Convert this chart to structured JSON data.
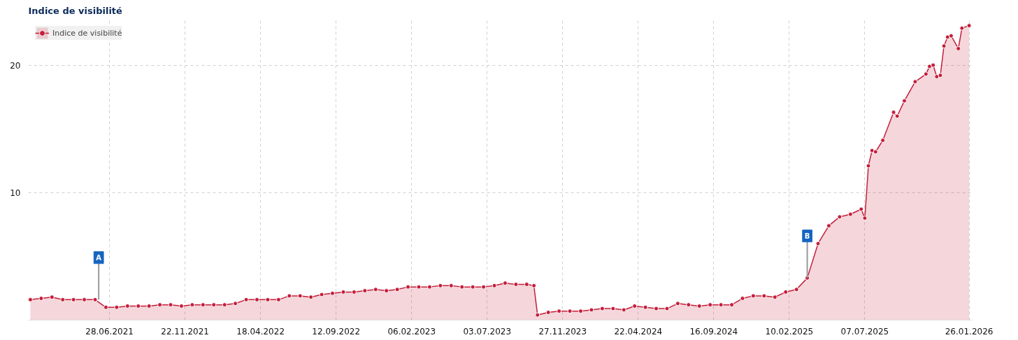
{
  "chart_data": {
    "type": "area",
    "title": "Indice de visibilité",
    "x": [
      "2021-01-25",
      "2021-02-15",
      "2021-03-08",
      "2021-03-29",
      "2021-04-19",
      "2021-05-10",
      "2021-05-31",
      "2021-06-21",
      "2021-07-12",
      "2021-08-02",
      "2021-08-23",
      "2021-09-13",
      "2021-10-04",
      "2021-10-25",
      "2021-11-15",
      "2021-12-06",
      "2021-12-27",
      "2022-01-17",
      "2022-02-07",
      "2022-02-28",
      "2022-03-21",
      "2022-04-11",
      "2022-05-02",
      "2022-05-23",
      "2022-06-13",
      "2022-07-04",
      "2022-07-25",
      "2022-08-15",
      "2022-09-05",
      "2022-09-26",
      "2022-10-17",
      "2022-11-07",
      "2022-11-28",
      "2022-12-19",
      "2023-01-09",
      "2023-01-30",
      "2023-02-20",
      "2023-03-13",
      "2023-04-03",
      "2023-04-24",
      "2023-05-15",
      "2023-06-05",
      "2023-06-26",
      "2023-07-17",
      "2023-08-07",
      "2023-08-28",
      "2023-09-18",
      "2023-10-02",
      "2023-10-09",
      "2023-10-30",
      "2023-11-20",
      "2023-12-11",
      "2024-01-01",
      "2024-01-22",
      "2024-02-12",
      "2024-03-04",
      "2024-03-25",
      "2024-04-15",
      "2024-05-06",
      "2024-05-27",
      "2024-06-17",
      "2024-07-08",
      "2024-07-29",
      "2024-08-19",
      "2024-09-09",
      "2024-09-30",
      "2024-10-21",
      "2024-11-11",
      "2024-12-02",
      "2024-12-23",
      "2025-01-13",
      "2025-02-03",
      "2025-02-24",
      "2025-03-17",
      "2025-04-07",
      "2025-04-28",
      "2025-05-19",
      "2025-06-09",
      "2025-06-30",
      "2025-07-07",
      "2025-07-14",
      "2025-07-21",
      "2025-07-28",
      "2025-08-11",
      "2025-09-01",
      "2025-09-08",
      "2025-09-22",
      "2025-10-13",
      "2025-11-03",
      "2025-11-10",
      "2025-11-17",
      "2025-11-24",
      "2025-12-01",
      "2025-12-08",
      "2025-12-15",
      "2025-12-22",
      "2026-01-05",
      "2026-01-12",
      "2026-01-26"
    ],
    "series": [
      {
        "name": "Indice de visibilité",
        "color": "#c41e3a",
        "values": [
          1.6,
          1.7,
          1.8,
          1.6,
          1.6,
          1.6,
          1.6,
          1.0,
          1.0,
          1.1,
          1.1,
          1.1,
          1.2,
          1.2,
          1.1,
          1.2,
          1.2,
          1.2,
          1.2,
          1.3,
          1.6,
          1.6,
          1.6,
          1.6,
          1.9,
          1.9,
          1.8,
          2.0,
          2.1,
          2.2,
          2.2,
          2.3,
          2.4,
          2.3,
          2.4,
          2.6,
          2.6,
          2.6,
          2.7,
          2.7,
          2.6,
          2.6,
          2.6,
          2.7,
          2.9,
          2.8,
          2.8,
          2.7,
          0.4,
          0.6,
          0.7,
          0.7,
          0.7,
          0.8,
          0.9,
          0.9,
          0.8,
          1.1,
          1.0,
          0.9,
          0.9,
          1.3,
          1.2,
          1.1,
          1.2,
          1.2,
          1.2,
          1.7,
          1.9,
          1.9,
          1.8,
          2.2,
          2.4,
          3.3,
          6.0,
          7.4,
          8.1,
          8.3,
          8.7,
          8.0,
          12.1,
          13.3,
          13.2,
          14.1,
          16.3,
          16.0,
          17.2,
          18.7,
          19.3,
          19.9,
          20.0,
          19.1,
          19.2,
          21.5,
          22.2,
          22.3,
          21.3,
          22.9,
          23.1
        ]
      }
    ],
    "xlim": [
      "2021-01-21",
      "2026-02-01"
    ],
    "ylim": [
      0,
      23.6
    ],
    "yticks": [
      10,
      20
    ],
    "xticks": [
      {
        "value": "2021-06-28",
        "label": "28.06.2021"
      },
      {
        "value": "2021-11-22",
        "label": "22.11.2021"
      },
      {
        "value": "2022-04-18",
        "label": "18.04.2022"
      },
      {
        "value": "2022-09-12",
        "label": "12.09.2022"
      },
      {
        "value": "2023-02-06",
        "label": "06.02.2023"
      },
      {
        "value": "2023-07-03",
        "label": "03.07.2023"
      },
      {
        "value": "2023-11-27",
        "label": "27.11.2023"
      },
      {
        "value": "2024-04-22",
        "label": "22.04.2024"
      },
      {
        "value": "2024-09-16",
        "label": "16.09.2024"
      },
      {
        "value": "2025-02-10",
        "label": "10.02.2025"
      },
      {
        "value": "2025-07-07",
        "label": "07.07.2025"
      },
      {
        "value": "2026-01-26",
        "label": "26.01.2026"
      }
    ],
    "annotations": [
      {
        "text": "A",
        "x": "2021-06-07",
        "y": 1.6
      },
      {
        "text": "B",
        "x": "2025-03-17",
        "y": 3.3
      }
    ],
    "grid": true,
    "legend": "top left",
    "marker": "circle",
    "line_style": "solid"
  }
}
